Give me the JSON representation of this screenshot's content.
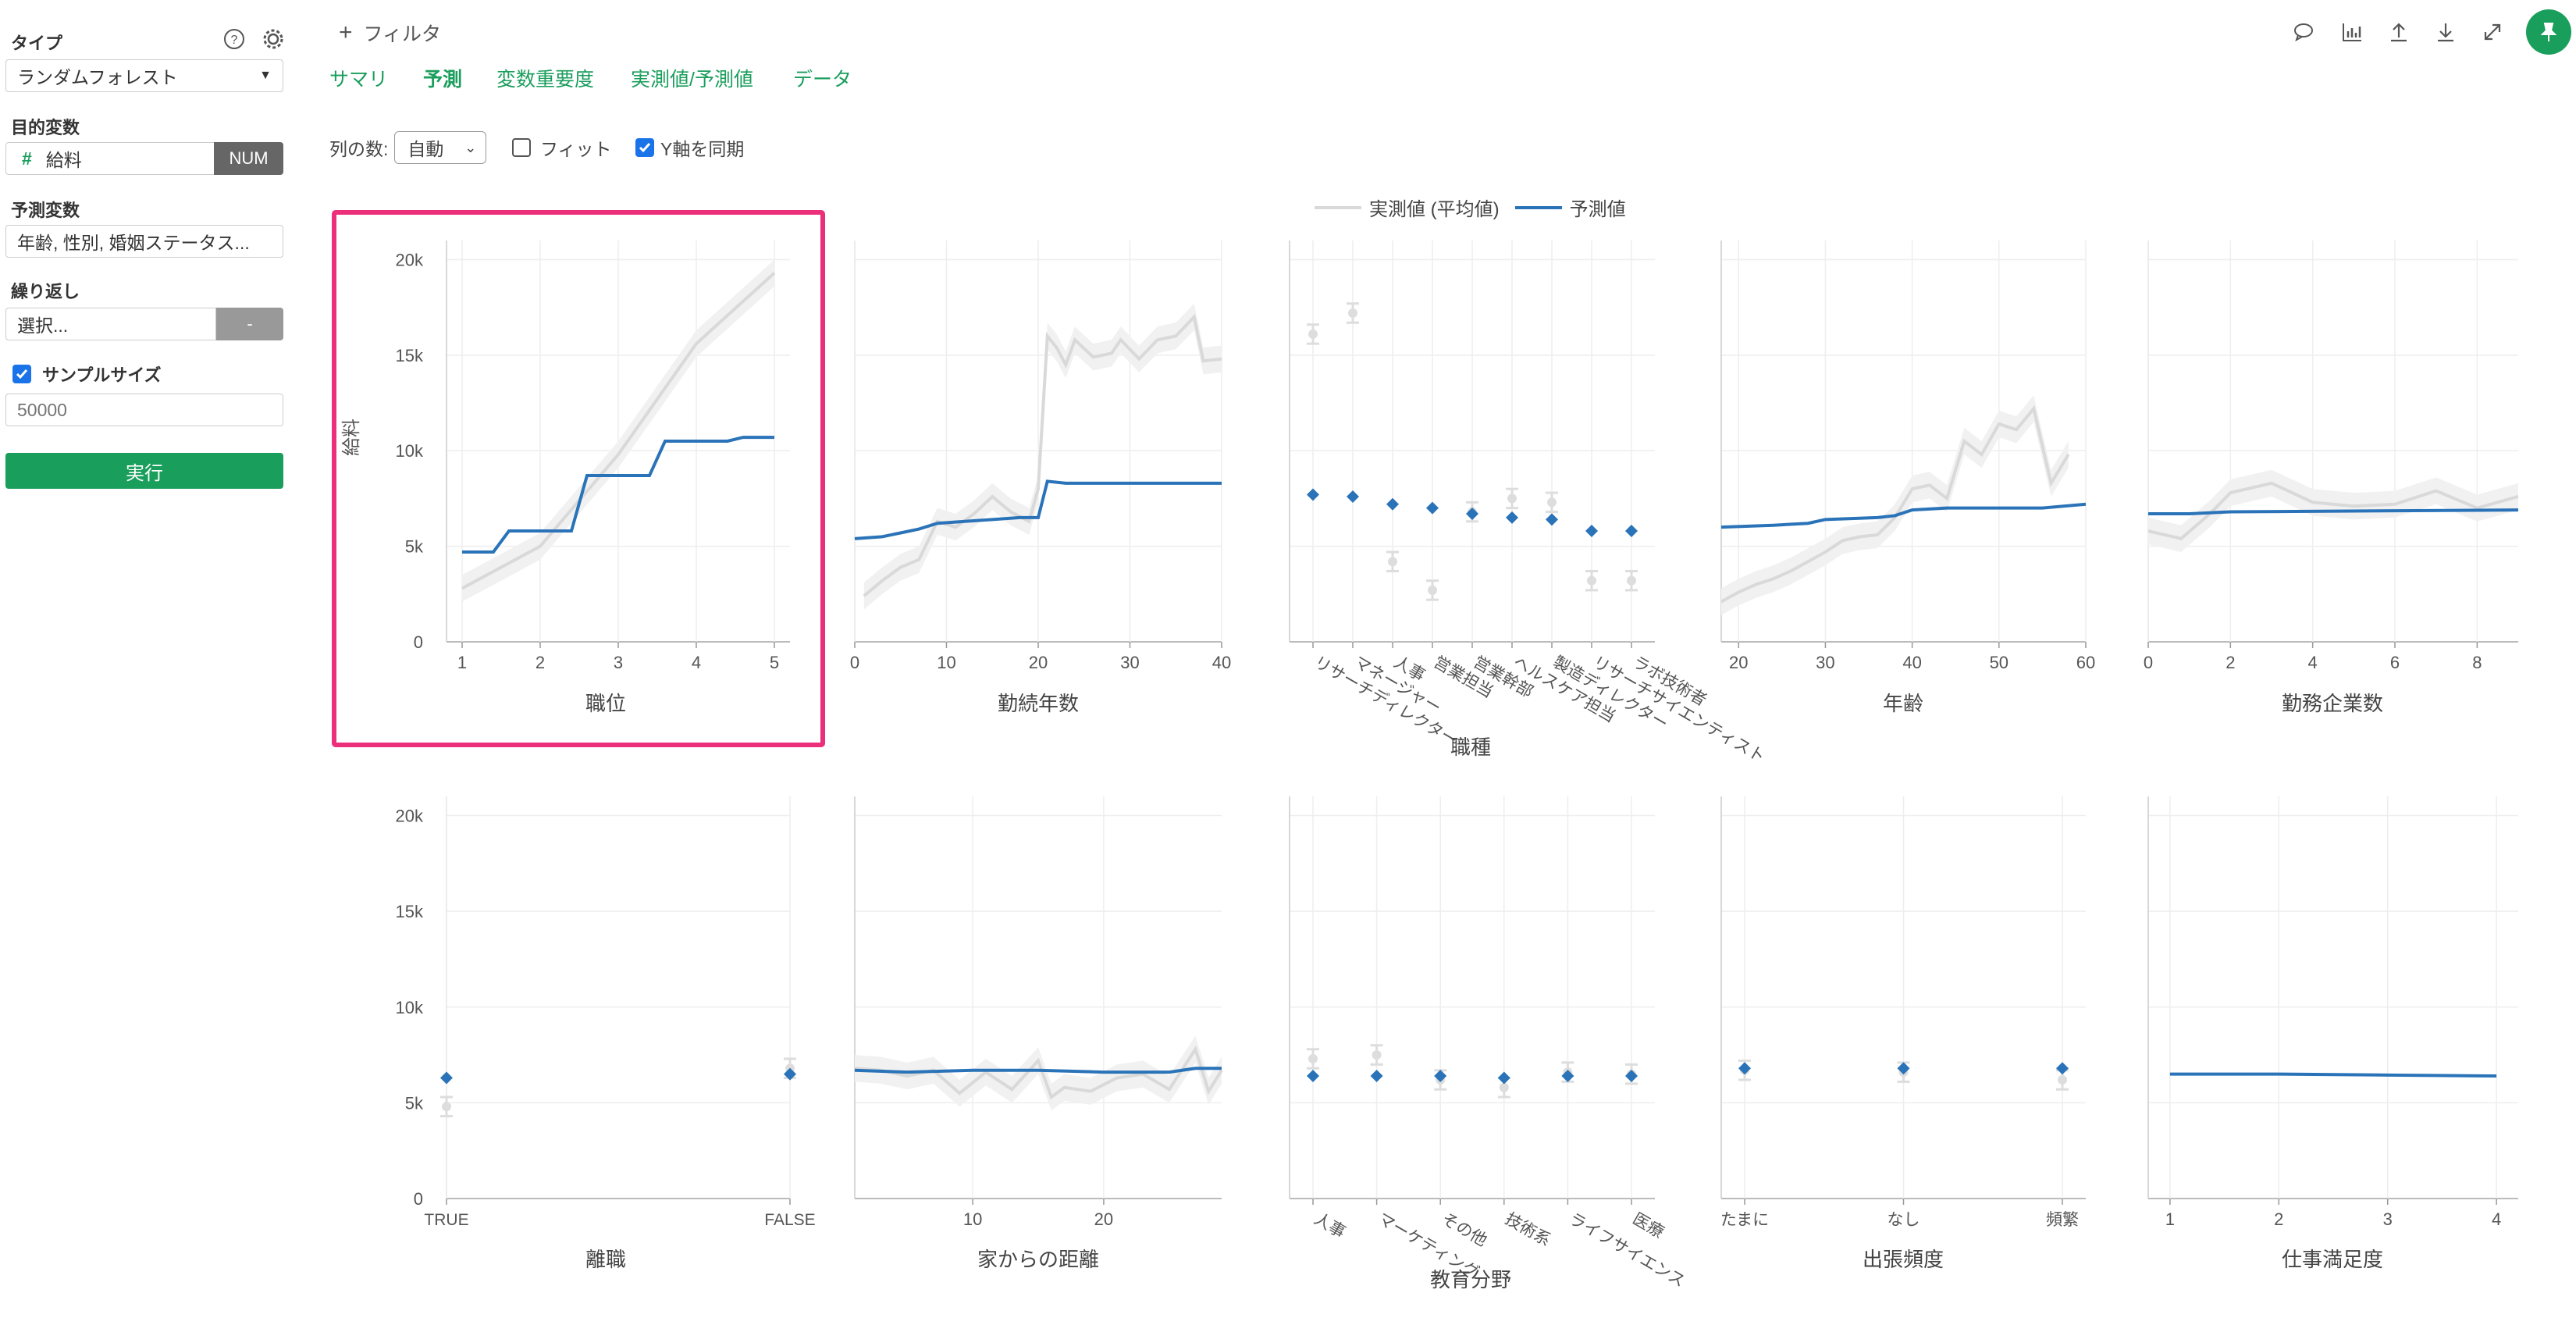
{
  "sidebar": {
    "type_label": "タイプ",
    "type_value": "ランダムフォレスト",
    "target_label": "目的変数",
    "target_value": "給料",
    "target_type_badge": "NUM",
    "predictors_label": "予測変数",
    "predictors_value": "年齢, 性別, 婚姻ステータス...",
    "repeat_label": "繰り返し",
    "repeat_placeholder": "選択...",
    "repeat_button": "-",
    "sample_size_label": "サンプルサイズ",
    "sample_size_checked": true,
    "sample_size_placeholder": "50000",
    "run_button": "実行"
  },
  "toolbar": {
    "add_filter": "フィルタ",
    "icons": [
      "comment-icon",
      "chart-icon",
      "upload-icon",
      "download-icon",
      "expand-icon",
      "pin-icon"
    ]
  },
  "tabs": [
    {
      "label": "サマリ",
      "active": false
    },
    {
      "label": "予測",
      "active": true
    },
    {
      "label": "変数重要度",
      "active": false
    },
    {
      "label": "実測値/予測値",
      "active": false
    },
    {
      "label": "データ",
      "active": false
    }
  ],
  "controls": {
    "columns_label": "列の数:",
    "columns_value": "自動",
    "fit_label": "フィット",
    "fit_checked": false,
    "sync_y_label": "Y軸を同期",
    "sync_y_checked": true
  },
  "colors": {
    "accent": "#1a9e5c",
    "actual": "#d9d9d9",
    "predicted": "#2a73b8",
    "highlight": "#ec2f7a"
  },
  "chart_data": {
    "legend": [
      {
        "name": "実測値 (平均値)",
        "color": "#d9d9d9"
      },
      {
        "name": "予測値",
        "color": "#2a73b8"
      }
    ],
    "ylabel": "給料",
    "ylim": [
      0,
      21000
    ],
    "yticks": [
      "0",
      "5k",
      "10k",
      "15k",
      "20k"
    ],
    "charts": [
      {
        "title": "職位",
        "type": "line",
        "highlighted": true,
        "xlim": [
          0.8,
          5.2
        ],
        "xticks": [
          1,
          2,
          3,
          4,
          5
        ],
        "actual": [
          [
            1,
            2800
          ],
          [
            2,
            5000
          ],
          [
            3,
            9800
          ],
          [
            4,
            15600
          ],
          [
            5,
            19300
          ]
        ],
        "predicted": [
          [
            1,
            4700
          ],
          [
            1.4,
            4700
          ],
          [
            1.6,
            5800
          ],
          [
            2.4,
            5800
          ],
          [
            2.6,
            8700
          ],
          [
            3.4,
            8700
          ],
          [
            3.6,
            10500
          ],
          [
            4.4,
            10500
          ],
          [
            4.6,
            10700
          ],
          [
            5,
            10700
          ]
        ]
      },
      {
        "title": "勤続年数",
        "type": "line",
        "xlim": [
          0,
          40
        ],
        "xticks": [
          0,
          10,
          20,
          30,
          40
        ],
        "actual": [
          [
            1,
            2400
          ],
          [
            3,
            3200
          ],
          [
            5,
            3900
          ],
          [
            7,
            4300
          ],
          [
            9,
            6300
          ],
          [
            11,
            6000
          ],
          [
            13,
            6700
          ],
          [
            15,
            7600
          ],
          [
            17,
            6800
          ],
          [
            19,
            6300
          ],
          [
            20,
            8000
          ],
          [
            21,
            16000
          ],
          [
            22,
            15400
          ],
          [
            23,
            14500
          ],
          [
            24,
            15800
          ],
          [
            26,
            14900
          ],
          [
            28,
            15100
          ],
          [
            29,
            15800
          ],
          [
            31,
            14800
          ],
          [
            33,
            15800
          ],
          [
            35,
            16000
          ],
          [
            37,
            17000
          ],
          [
            38,
            14700
          ],
          [
            40,
            14800
          ]
        ],
        "predicted": [
          [
            0,
            5400
          ],
          [
            3,
            5500
          ],
          [
            5,
            5700
          ],
          [
            7,
            5900
          ],
          [
            9,
            6200
          ],
          [
            12,
            6300
          ],
          [
            15,
            6400
          ],
          [
            18,
            6500
          ],
          [
            20,
            6500
          ],
          [
            21,
            8400
          ],
          [
            23,
            8300
          ],
          [
            30,
            8300
          ],
          [
            40,
            8300
          ]
        ]
      },
      {
        "title": "職種",
        "type": "category",
        "categories": [
          "リサーチディレクター",
          "マネージャー",
          "人事",
          "営業担当",
          "営業幹部",
          "ヘルスケア担当",
          "製造ディレクター",
          "リサーチサイエンティスト",
          "ラボ技術者"
        ],
        "actual": [
          16100,
          17200,
          4200,
          2700,
          6800,
          7500,
          7300,
          3200,
          3200
        ],
        "predicted": [
          7700,
          7600,
          7200,
          7000,
          6700,
          6500,
          6400,
          5800,
          5800
        ]
      },
      {
        "title": "年齢",
        "type": "line",
        "xlim": [
          18,
          60
        ],
        "xticks": [
          20,
          30,
          40,
          50,
          60
        ],
        "actual": [
          [
            18,
            2100
          ],
          [
            20,
            2600
          ],
          [
            22,
            3000
          ],
          [
            24,
            3300
          ],
          [
            26,
            3700
          ],
          [
            28,
            4200
          ],
          [
            30,
            4700
          ],
          [
            32,
            5300
          ],
          [
            34,
            5500
          ],
          [
            36,
            5600
          ],
          [
            38,
            6500
          ],
          [
            40,
            8000
          ],
          [
            42,
            8200
          ],
          [
            44,
            7500
          ],
          [
            46,
            10500
          ],
          [
            48,
            9800
          ],
          [
            50,
            11400
          ],
          [
            52,
            11100
          ],
          [
            54,
            12200
          ],
          [
            56,
            8300
          ],
          [
            58,
            9800
          ]
        ],
        "predicted": [
          [
            18,
            6000
          ],
          [
            24,
            6100
          ],
          [
            28,
            6200
          ],
          [
            30,
            6400
          ],
          [
            36,
            6500
          ],
          [
            38,
            6600
          ],
          [
            40,
            6900
          ],
          [
            44,
            7000
          ],
          [
            55,
            7000
          ],
          [
            60,
            7200
          ]
        ]
      },
      {
        "title": "勤務企業数",
        "type": "line",
        "xlim": [
          0,
          9
        ],
        "xticks": [
          0,
          2,
          4,
          6,
          8
        ],
        "actual": [
          [
            0,
            5800
          ],
          [
            0.8,
            5400
          ],
          [
            1.5,
            6700
          ],
          [
            2,
            7800
          ],
          [
            3,
            8300
          ],
          [
            4,
            7300
          ],
          [
            5,
            7100
          ],
          [
            6,
            7200
          ],
          [
            7,
            7900
          ],
          [
            8,
            7000
          ],
          [
            9,
            7600
          ]
        ],
        "predicted": [
          [
            0,
            6700
          ],
          [
            1,
            6700
          ],
          [
            2,
            6800
          ],
          [
            9,
            6900
          ]
        ]
      },
      {
        "title": "離職",
        "type": "category",
        "categories": [
          "TRUE",
          "FALSE"
        ],
        "actual": [
          4800,
          6800
        ],
        "predicted": [
          6300,
          6500
        ]
      },
      {
        "title": "家からの距離",
        "type": "line",
        "xlim": [
          1,
          29
        ],
        "xticks": [
          10,
          20
        ],
        "actual": [
          [
            1,
            6800
          ],
          [
            3,
            6700
          ],
          [
            5,
            6400
          ],
          [
            7,
            6700
          ],
          [
            9,
            5500
          ],
          [
            11,
            6600
          ],
          [
            13,
            5700
          ],
          [
            15,
            7200
          ],
          [
            16,
            5300
          ],
          [
            17,
            5800
          ],
          [
            19,
            5600
          ],
          [
            21,
            6300
          ],
          [
            23,
            6500
          ],
          [
            25,
            5700
          ],
          [
            27,
            7800
          ],
          [
            28,
            5600
          ],
          [
            29,
            6700
          ]
        ],
        "predicted": [
          [
            1,
            6700
          ],
          [
            5,
            6600
          ],
          [
            10,
            6700
          ],
          [
            15,
            6700
          ],
          [
            20,
            6600
          ],
          [
            25,
            6600
          ],
          [
            27,
            6800
          ],
          [
            29,
            6800
          ]
        ]
      },
      {
        "title": "教育分野",
        "type": "category",
        "categories": [
          "人事",
          "マーケティング",
          "その他",
          "技術系",
          "ライフサイエンス",
          "医療"
        ],
        "actual": [
          7300,
          7500,
          6200,
          5800,
          6600,
          6500
        ],
        "predicted": [
          6400,
          6400,
          6400,
          6300,
          6400,
          6400
        ]
      },
      {
        "title": "出張頻度",
        "type": "category",
        "categories": [
          "たまに",
          "なし",
          "頻繁"
        ],
        "actual": [
          6700,
          6600,
          6200
        ],
        "predicted": [
          6800,
          6800,
          6800
        ]
      },
      {
        "title": "仕事満足度",
        "type": "line",
        "xlim": [
          0.8,
          4.2
        ],
        "xticks": [
          1,
          2,
          3,
          4
        ],
        "actual": [],
        "predicted": [
          [
            1,
            6500
          ],
          [
            2,
            6500
          ],
          [
            3,
            6450
          ],
          [
            4,
            6400
          ]
        ]
      }
    ],
    "category_axis_title": "職種",
    "category_axis_title_2": "教育分野"
  }
}
